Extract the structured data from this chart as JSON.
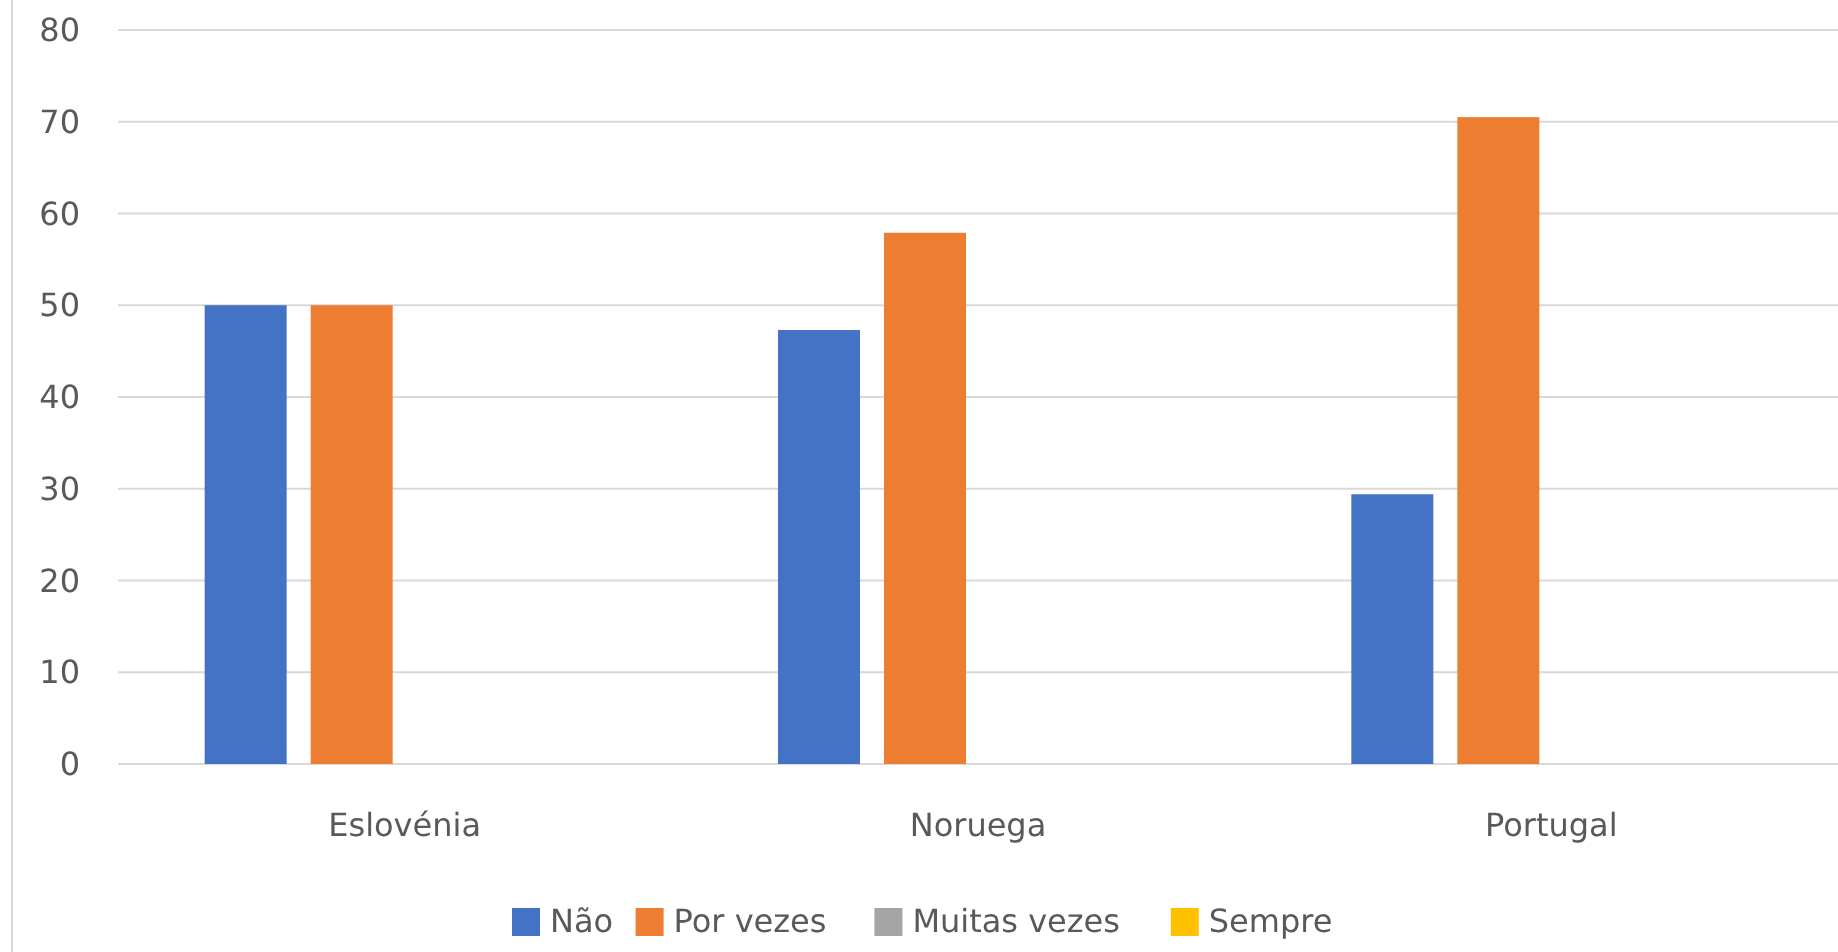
{
  "chart_data": {
    "type": "bar",
    "categories": [
      "Eslovénia",
      "Noruega",
      "Portugal"
    ],
    "series": [
      {
        "name": "Não",
        "color": "#4472c4",
        "values": [
          50,
          47.3,
          29.4
        ]
      },
      {
        "name": "Por vezes",
        "color": "#ed7d31",
        "values": [
          50,
          57.9,
          70.5
        ]
      },
      {
        "name": "Muitas vezes",
        "color": "#a5a5a5",
        "values": [
          0,
          0,
          0
        ]
      },
      {
        "name": "Sempre",
        "color": "#ffc000",
        "values": [
          0,
          0,
          0
        ]
      }
    ],
    "ylim": [
      0,
      80
    ],
    "yticks": [
      0,
      10,
      20,
      30,
      40,
      50,
      60,
      70,
      80
    ],
    "grid": "y",
    "legend": "bottom"
  }
}
